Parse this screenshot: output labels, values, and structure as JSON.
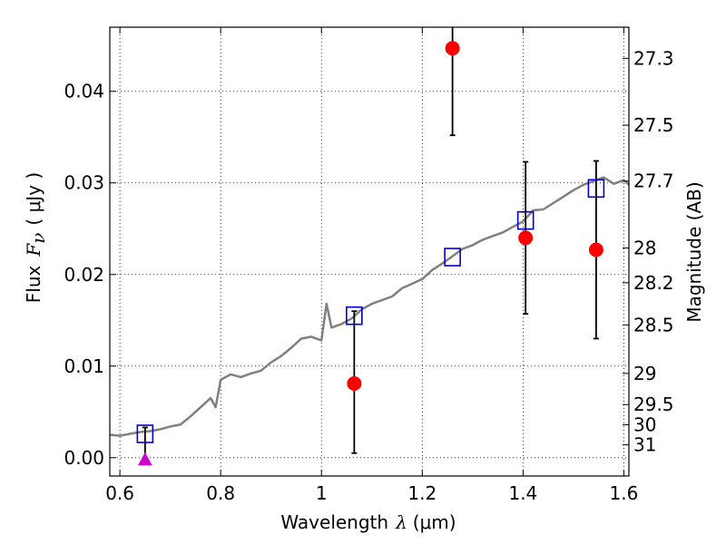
{
  "chart_data": {
    "type": "scatter",
    "xlabel": "Wavelength",
    "xlabel_symbol": "λ",
    "xlabel_unit": "(μm)",
    "ylabel": "Flux",
    "ylabel_symbol": "F",
    "ylabel_subscript": "ν",
    "ylabel_unit": "( μJy )",
    "y2label": "Magnitude (AB)",
    "xlim": [
      0.58,
      1.61
    ],
    "ylim": [
      -0.002,
      0.047
    ],
    "xticks": [
      0.6,
      0.8,
      1.0,
      1.2,
      1.4,
      1.6
    ],
    "xtick_labels": [
      "0.6",
      "0.8",
      "1",
      "1.2",
      "1.4",
      "1.6"
    ],
    "yticks": [
      0.0,
      0.01,
      0.02,
      0.03,
      0.04
    ],
    "ytick_labels": [
      "0.00",
      "0.01",
      "0.02",
      "0.03",
      "0.04"
    ],
    "y2ticks": [
      {
        "label": "27.3",
        "flux": 0.0436
      },
      {
        "label": "27.5",
        "flux": 0.0363
      },
      {
        "label": "27.7",
        "flux": 0.0302
      },
      {
        "label": "28",
        "flux": 0.0229
      },
      {
        "label": "28.2",
        "flux": 0.0191
      },
      {
        "label": "28.5",
        "flux": 0.0145
      },
      {
        "label": "29",
        "flux": 0.0092
      },
      {
        "label": "29.5",
        "flux": 0.0058
      },
      {
        "label": "30",
        "flux": 0.0036
      },
      {
        "label": "31",
        "flux": 0.0014
      }
    ],
    "grid": true,
    "series": [
      {
        "kind": "model_spectrum",
        "color": "#808080",
        "x": [
          0.58,
          0.6,
          0.62,
          0.64,
          0.66,
          0.68,
          0.7,
          0.72,
          0.74,
          0.76,
          0.78,
          0.79,
          0.8,
          0.82,
          0.84,
          0.86,
          0.88,
          0.9,
          0.92,
          0.94,
          0.96,
          0.98,
          1.0,
          1.01,
          1.02,
          1.04,
          1.06,
          1.08,
          1.1,
          1.12,
          1.14,
          1.16,
          1.18,
          1.2,
          1.22,
          1.24,
          1.26,
          1.28,
          1.3,
          1.32,
          1.34,
          1.36,
          1.38,
          1.4,
          1.42,
          1.44,
          1.46,
          1.48,
          1.5,
          1.52,
          1.54,
          1.56,
          1.58,
          1.6,
          1.61
        ],
        "y": [
          0.0025,
          0.0024,
          0.0026,
          0.0028,
          0.0029,
          0.0031,
          0.0034,
          0.0036,
          0.0045,
          0.0055,
          0.0065,
          0.0055,
          0.0085,
          0.0091,
          0.0088,
          0.0092,
          0.0095,
          0.0104,
          0.0111,
          0.012,
          0.013,
          0.0132,
          0.0128,
          0.0168,
          0.0142,
          0.0146,
          0.0152,
          0.0162,
          0.0168,
          0.0172,
          0.0176,
          0.0185,
          0.019,
          0.0195,
          0.0205,
          0.0212,
          0.022,
          0.0228,
          0.0232,
          0.0238,
          0.0242,
          0.0246,
          0.0252,
          0.0258,
          0.027,
          0.0271,
          0.0278,
          0.0285,
          0.0292,
          0.0298,
          0.0302,
          0.0306,
          0.0299,
          0.0303,
          0.0298
        ]
      },
      {
        "kind": "model_points",
        "marker": "square",
        "color": "#0000cc",
        "x": [
          0.65,
          1.065,
          1.26,
          1.405,
          1.545
        ],
        "y": [
          0.0026,
          0.0155,
          0.0219,
          0.0259,
          0.0294
        ]
      },
      {
        "kind": "observed",
        "marker": "circle",
        "color": "#ff0000",
        "x": [
          1.065,
          1.26,
          1.405,
          1.545
        ],
        "y": [
          0.0081,
          0.0447,
          0.024,
          0.0227
        ],
        "yerr_low": [
          0.0076,
          0.0095,
          0.0083,
          0.0097
        ],
        "yerr_high": [
          0.0079,
          0.0093,
          0.0083,
          0.0097
        ]
      },
      {
        "kind": "upper_limit",
        "marker": "triangle",
        "color": "#cc00cc",
        "x": [
          0.65
        ],
        "y": [
          -0.0002
        ],
        "yerr_high": [
          0.0035
        ]
      }
    ]
  }
}
